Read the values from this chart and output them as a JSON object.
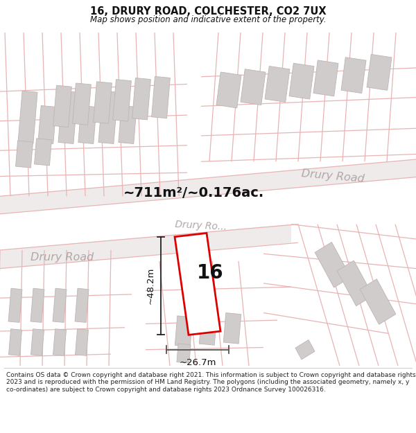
{
  "title": "16, DRURY ROAD, COLCHESTER, CO2 7UX",
  "subtitle": "Map shows position and indicative extent of the property.",
  "footer": "Contains OS data © Crown copyright and database right 2021. This information is subject to Crown copyright and database rights 2023 and is reproduced with the permission of HM Land Registry. The polygons (including the associated geometry, namely x, y co-ordinates) are subject to Crown copyright and database rights 2023 Ordnance Survey 100026316.",
  "area_label": "~711m²/~0.176ac.",
  "number_label": "16",
  "dim_height": "~48.2m",
  "dim_width": "~26.7m",
  "road_label_left": "Drury Road",
  "road_label_right": "Drury Road",
  "road_label_mid": "Drury Ro...",
  "bg_color": "#ffffff",
  "map_bg": "#f5efef",
  "plot_edge_color": "#dd0000",
  "plot_fill": "#ffffff",
  "road_line_color": "#e8b4b4",
  "road_band_color": "#e8e0e0",
  "building_fill": "#d0cccc",
  "building_edge": "#c8b8b8",
  "dim_color": "#222222",
  "text_color": "#111111",
  "road_text_color": "#b0a8a8"
}
